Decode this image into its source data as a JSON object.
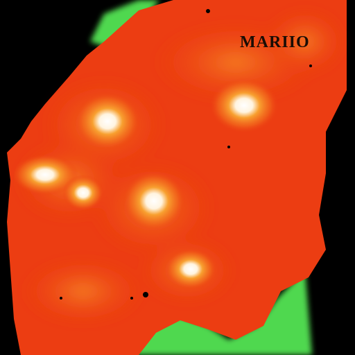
{
  "map": {
    "label": "MARIIO",
    "colors": {
      "background": "#000000",
      "land_base": "#ec3d12",
      "land_mid": "#f26a1c",
      "hotspot_edge": "#f8a030",
      "hotspot_core": "#ffffff",
      "green_fringe": "#4fd84f",
      "label_text": "#1a0d05"
    }
  }
}
